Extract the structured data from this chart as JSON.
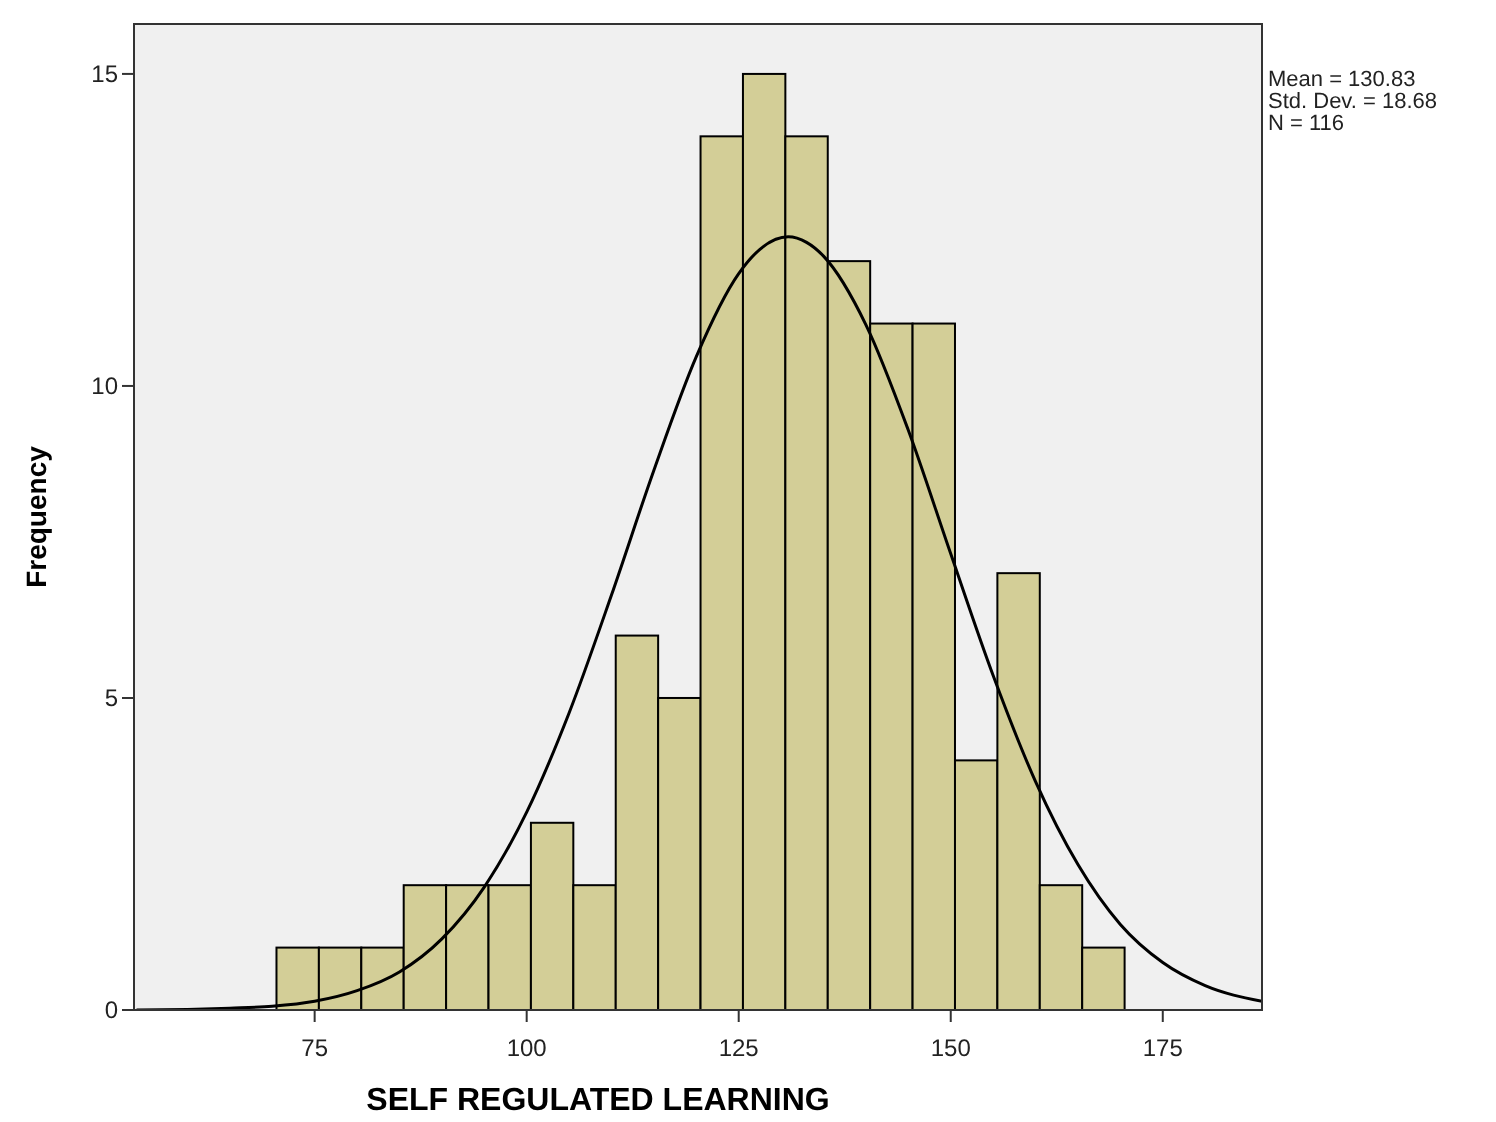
{
  "chart_data": {
    "type": "histogram",
    "xlabel": "SELF REGULATED LEARNING",
    "ylabel": "Frequency",
    "annotations": [
      "Mean = 130.83",
      "Std. Dev. = 18.68",
      "N = 116"
    ],
    "bins": [
      70.5,
      75.5,
      80.5,
      85.5,
      90.5,
      95.5,
      100.5,
      105.5,
      110.5,
      115.5,
      120.5,
      125.5,
      130.5,
      135.5,
      140.5,
      145.5,
      150.5,
      155.5,
      160.5,
      165.5,
      170.5
    ],
    "values": [
      1,
      1,
      1,
      2,
      2,
      2,
      3,
      2,
      6,
      5,
      14,
      15,
      14,
      12,
      11,
      11,
      4,
      7,
      2,
      1
    ],
    "color": "#d3ce97",
    "series": [
      {
        "type": "line",
        "color": "#000000",
        "x": [
          54,
          60,
          65,
          70,
          75,
          80,
          85,
          90,
          95,
          100,
          105,
          110,
          115,
          120,
          125,
          127.5,
          130.83,
          133,
          135,
          140,
          145,
          150,
          155,
          160,
          165,
          170,
          175,
          180,
          186.7
        ],
        "values": [
          0.0,
          0.01,
          0.03,
          0.06,
          0.14,
          0.31,
          0.61,
          1.14,
          1.97,
          3.17,
          4.76,
          6.65,
          8.65,
          10.47,
          11.8,
          12.19,
          12.39,
          12.3,
          12.08,
          10.98,
          9.29,
          7.31,
          5.36,
          3.66,
          2.33,
          1.37,
          0.76,
          0.39,
          0.14
        ]
      }
    ],
    "xlim": [
      53.7,
      186.7
    ],
    "xticks": [
      75,
      100,
      125,
      150,
      175
    ],
    "ylim": [
      0,
      15.8
    ],
    "yticks": [
      0,
      5,
      10,
      15
    ],
    "grid": false
  }
}
